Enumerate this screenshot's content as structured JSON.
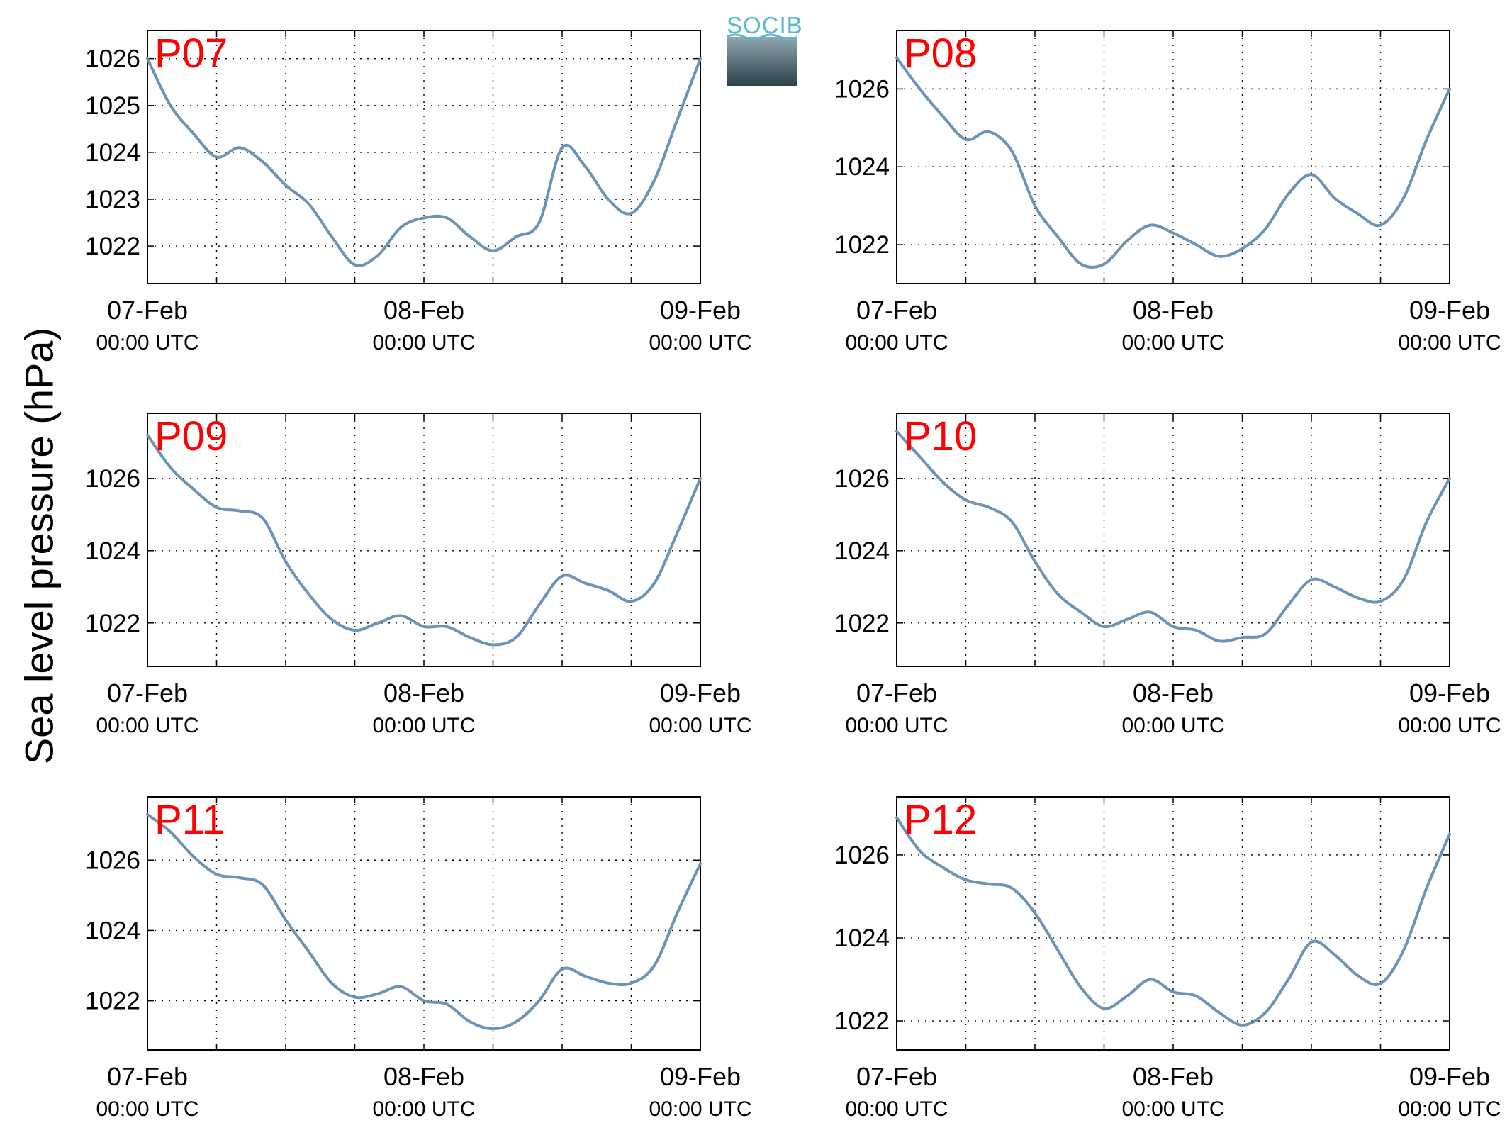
{
  "figure": {
    "ylabel": "Sea level pressure (hPa)",
    "logo_text": "SOCIB",
    "line_color": "#6a93b7",
    "panel_label_color": "#ff0000"
  },
  "chart_data": [
    {
      "type": "line",
      "title": "P07",
      "x_tick_labels": [
        [
          "07-Feb",
          "00:00 UTC"
        ],
        [
          "08-Feb",
          "00:00 UTC"
        ],
        [
          "09-Feb",
          "00:00 UTC"
        ]
      ],
      "x_hours": [
        0,
        2,
        4,
        6,
        8,
        10,
        12,
        14,
        16,
        18,
        20,
        22,
        24,
        26,
        28,
        30,
        32,
        34,
        36,
        38,
        40,
        42,
        44,
        46,
        48
      ],
      "xlim": [
        0,
        48
      ],
      "ylim": [
        1021.2,
        1026.6
      ],
      "yticks": [
        1022,
        1023,
        1024,
        1025,
        1026
      ],
      "grid": true,
      "values": [
        1026.0,
        1025.0,
        1024.4,
        1023.9,
        1024.1,
        1023.8,
        1023.3,
        1022.9,
        1022.2,
        1021.6,
        1021.8,
        1022.4,
        1022.6,
        1022.6,
        1022.2,
        1021.9,
        1022.2,
        1022.5,
        1024.1,
        1023.7,
        1023.0,
        1022.7,
        1023.4,
        1024.7,
        1026.0
      ]
    },
    {
      "type": "line",
      "title": "P08",
      "x_tick_labels": [
        [
          "07-Feb",
          "00:00 UTC"
        ],
        [
          "08-Feb",
          "00:00 UTC"
        ],
        [
          "09-Feb",
          "00:00 UTC"
        ]
      ],
      "x_hours": [
        0,
        2,
        4,
        6,
        8,
        10,
        12,
        14,
        16,
        18,
        20,
        22,
        24,
        26,
        28,
        30,
        32,
        34,
        36,
        38,
        40,
        42,
        44,
        46,
        48
      ],
      "xlim": [
        0,
        48
      ],
      "ylim": [
        1021.0,
        1027.5
      ],
      "yticks": [
        1022,
        1024,
        1026
      ],
      "grid": true,
      "values": [
        1026.8,
        1026.0,
        1025.3,
        1024.7,
        1024.9,
        1024.4,
        1023.0,
        1022.2,
        1021.5,
        1021.5,
        1022.1,
        1022.5,
        1022.3,
        1022.0,
        1021.7,
        1021.9,
        1022.4,
        1023.3,
        1023.8,
        1023.2,
        1022.8,
        1022.5,
        1023.2,
        1024.7,
        1026.0
      ]
    },
    {
      "type": "line",
      "title": "P09",
      "x_tick_labels": [
        [
          "07-Feb",
          "00:00 UTC"
        ],
        [
          "08-Feb",
          "00:00 UTC"
        ],
        [
          "09-Feb",
          "00:00 UTC"
        ]
      ],
      "x_hours": [
        0,
        2,
        4,
        6,
        8,
        10,
        12,
        14,
        16,
        18,
        20,
        22,
        24,
        26,
        28,
        30,
        32,
        34,
        36,
        38,
        40,
        42,
        44,
        46,
        48
      ],
      "xlim": [
        0,
        48
      ],
      "ylim": [
        1020.8,
        1027.8
      ],
      "yticks": [
        1022,
        1024,
        1026
      ],
      "grid": true,
      "values": [
        1027.2,
        1026.3,
        1025.7,
        1025.2,
        1025.1,
        1024.9,
        1023.7,
        1022.8,
        1022.1,
        1021.8,
        1022.0,
        1022.2,
        1021.9,
        1021.9,
        1021.6,
        1021.4,
        1021.6,
        1022.5,
        1023.3,
        1023.1,
        1022.9,
        1022.6,
        1023.1,
        1024.5,
        1026.0
      ]
    },
    {
      "type": "line",
      "title": "P10",
      "x_tick_labels": [
        [
          "07-Feb",
          "00:00 UTC"
        ],
        [
          "08-Feb",
          "00:00 UTC"
        ],
        [
          "09-Feb",
          "00:00 UTC"
        ]
      ],
      "x_hours": [
        0,
        2,
        4,
        6,
        8,
        10,
        12,
        14,
        16,
        18,
        20,
        22,
        24,
        26,
        28,
        30,
        32,
        34,
        36,
        38,
        40,
        42,
        44,
        46,
        48
      ],
      "xlim": [
        0,
        48
      ],
      "ylim": [
        1020.8,
        1027.8
      ],
      "yticks": [
        1022,
        1024,
        1026
      ],
      "grid": true,
      "values": [
        1027.3,
        1026.6,
        1025.9,
        1025.4,
        1025.2,
        1024.8,
        1023.7,
        1022.8,
        1022.3,
        1021.9,
        1022.1,
        1022.3,
        1021.9,
        1021.8,
        1021.5,
        1021.6,
        1021.7,
        1022.5,
        1023.2,
        1023.0,
        1022.7,
        1022.6,
        1023.2,
        1024.8,
        1026.0
      ]
    },
    {
      "type": "line",
      "title": "P11",
      "x_tick_labels": [
        [
          "07-Feb",
          "00:00 UTC"
        ],
        [
          "08-Feb",
          "00:00 UTC"
        ],
        [
          "09-Feb",
          "00:00 UTC"
        ]
      ],
      "x_hours": [
        0,
        2,
        4,
        6,
        8,
        10,
        12,
        14,
        16,
        18,
        20,
        22,
        24,
        26,
        28,
        30,
        32,
        34,
        36,
        38,
        40,
        42,
        44,
        46,
        48
      ],
      "xlim": [
        0,
        48
      ],
      "ylim": [
        1020.6,
        1027.8
      ],
      "yticks": [
        1022,
        1024,
        1026
      ],
      "grid": true,
      "values": [
        1027.3,
        1026.8,
        1026.1,
        1025.6,
        1025.5,
        1025.3,
        1024.3,
        1023.4,
        1022.5,
        1022.1,
        1022.2,
        1022.4,
        1022.0,
        1021.9,
        1021.4,
        1021.2,
        1021.4,
        1022.0,
        1022.9,
        1022.7,
        1022.5,
        1022.5,
        1023.0,
        1024.5,
        1025.9
      ]
    },
    {
      "type": "line",
      "title": "P12",
      "x_tick_labels": [
        [
          "07-Feb",
          "00:00 UTC"
        ],
        [
          "08-Feb",
          "00:00 UTC"
        ],
        [
          "09-Feb",
          "00:00 UTC"
        ]
      ],
      "x_hours": [
        0,
        2,
        4,
        6,
        8,
        10,
        12,
        14,
        16,
        18,
        20,
        22,
        24,
        26,
        28,
        30,
        32,
        34,
        36,
        38,
        40,
        42,
        44,
        46,
        48
      ],
      "xlim": [
        0,
        48
      ],
      "ylim": [
        1021.3,
        1027.4
      ],
      "yticks": [
        1022,
        1024,
        1026
      ],
      "grid": true,
      "values": [
        1026.9,
        1026.1,
        1025.7,
        1025.4,
        1025.3,
        1025.2,
        1024.6,
        1023.7,
        1022.8,
        1022.3,
        1022.6,
        1023.0,
        1022.7,
        1022.6,
        1022.2,
        1021.9,
        1022.2,
        1023.0,
        1023.9,
        1023.6,
        1023.1,
        1022.9,
        1023.7,
        1025.2,
        1026.5
      ]
    }
  ]
}
